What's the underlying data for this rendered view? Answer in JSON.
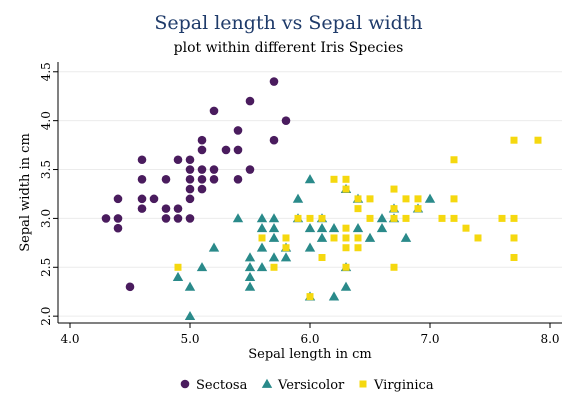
{
  "chart_data": {
    "type": "scatter",
    "title": "Sepal length vs Sepal width",
    "subtitle": "plot within different Iris Species",
    "xlabel": "Sepal length in cm",
    "ylabel": "Sepal width in cm",
    "xlim": [
      3.9,
      8.1
    ],
    "ylim": [
      1.93,
      4.6
    ],
    "xticks": [
      "4.0",
      "5.0",
      "6.0",
      "7.0",
      "8.0"
    ],
    "yticks": [
      "2.0",
      "2.5",
      "3.0",
      "3.5",
      "4.0",
      "4.5"
    ],
    "grid": "horizontal",
    "legend_position": "bottom",
    "series": [
      {
        "name": "Sectosa",
        "marker": "circle",
        "color": "#4a1c5e",
        "points": [
          [
            4.3,
            3.0
          ],
          [
            4.4,
            2.9
          ],
          [
            4.4,
            3.0
          ],
          [
            4.4,
            3.2
          ],
          [
            4.5,
            2.3
          ],
          [
            4.6,
            3.1
          ],
          [
            4.6,
            3.2
          ],
          [
            4.6,
            3.4
          ],
          [
            4.6,
            3.6
          ],
          [
            4.7,
            3.2
          ],
          [
            4.8,
            3.0
          ],
          [
            4.8,
            3.1
          ],
          [
            4.8,
            3.4
          ],
          [
            4.9,
            3.0
          ],
          [
            4.9,
            3.1
          ],
          [
            4.9,
            3.6
          ],
          [
            5.0,
            3.0
          ],
          [
            5.0,
            3.2
          ],
          [
            5.0,
            3.3
          ],
          [
            5.0,
            3.4
          ],
          [
            5.0,
            3.5
          ],
          [
            5.0,
            3.6
          ],
          [
            5.1,
            3.3
          ],
          [
            5.1,
            3.4
          ],
          [
            5.1,
            3.5
          ],
          [
            5.1,
            3.7
          ],
          [
            5.1,
            3.8
          ],
          [
            5.2,
            3.4
          ],
          [
            5.2,
            3.5
          ],
          [
            5.2,
            4.1
          ],
          [
            5.3,
            3.7
          ],
          [
            5.4,
            3.4
          ],
          [
            5.4,
            3.7
          ],
          [
            5.4,
            3.9
          ],
          [
            5.5,
            3.5
          ],
          [
            5.5,
            4.2
          ],
          [
            5.7,
            3.8
          ],
          [
            5.7,
            4.4
          ],
          [
            5.8,
            4.0
          ]
        ]
      },
      {
        "name": "Versicolor",
        "marker": "triangle",
        "color": "#2a8a8a",
        "points": [
          [
            4.9,
            2.4
          ],
          [
            5.0,
            2.0
          ],
          [
            5.0,
            2.3
          ],
          [
            5.1,
            2.5
          ],
          [
            5.2,
            2.7
          ],
          [
            5.4,
            3.0
          ],
          [
            5.5,
            2.3
          ],
          [
            5.5,
            2.4
          ],
          [
            5.5,
            2.5
          ],
          [
            5.5,
            2.6
          ],
          [
            5.6,
            2.5
          ],
          [
            5.6,
            2.7
          ],
          [
            5.6,
            2.9
          ],
          [
            5.6,
            3.0
          ],
          [
            5.7,
            2.6
          ],
          [
            5.7,
            2.8
          ],
          [
            5.7,
            2.9
          ],
          [
            5.7,
            3.0
          ],
          [
            5.8,
            2.6
          ],
          [
            5.8,
            2.7
          ],
          [
            5.9,
            3.0
          ],
          [
            5.9,
            3.2
          ],
          [
            6.0,
            2.2
          ],
          [
            6.0,
            2.7
          ],
          [
            6.0,
            2.9
          ],
          [
            6.0,
            3.4
          ],
          [
            6.1,
            2.8
          ],
          [
            6.1,
            2.9
          ],
          [
            6.1,
            3.0
          ],
          [
            6.2,
            2.2
          ],
          [
            6.2,
            2.9
          ],
          [
            6.3,
            2.3
          ],
          [
            6.3,
            2.5
          ],
          [
            6.3,
            3.3
          ],
          [
            6.4,
            2.9
          ],
          [
            6.4,
            3.2
          ],
          [
            6.5,
            2.8
          ],
          [
            6.6,
            2.9
          ],
          [
            6.6,
            3.0
          ],
          [
            6.7,
            3.0
          ],
          [
            6.7,
            3.1
          ],
          [
            6.8,
            2.8
          ],
          [
            6.9,
            3.1
          ],
          [
            7.0,
            3.2
          ]
        ]
      },
      {
        "name": "Virginica",
        "marker": "square",
        "color": "#f5d80f",
        "points": [
          [
            4.9,
            2.5
          ],
          [
            5.6,
            2.8
          ],
          [
            5.7,
            2.5
          ],
          [
            5.8,
            2.7
          ],
          [
            5.8,
            2.8
          ],
          [
            5.9,
            3.0
          ],
          [
            6.0,
            2.2
          ],
          [
            6.0,
            3.0
          ],
          [
            6.1,
            2.6
          ],
          [
            6.1,
            3.0
          ],
          [
            6.2,
            2.8
          ],
          [
            6.2,
            3.4
          ],
          [
            6.3,
            2.5
          ],
          [
            6.3,
            2.7
          ],
          [
            6.3,
            2.8
          ],
          [
            6.3,
            2.9
          ],
          [
            6.3,
            3.3
          ],
          [
            6.3,
            3.4
          ],
          [
            6.4,
            2.7
          ],
          [
            6.4,
            2.8
          ],
          [
            6.4,
            3.1
          ],
          [
            6.4,
            3.2
          ],
          [
            6.5,
            3.0
          ],
          [
            6.5,
            3.2
          ],
          [
            6.7,
            2.5
          ],
          [
            6.7,
            3.0
          ],
          [
            6.7,
            3.1
          ],
          [
            6.7,
            3.3
          ],
          [
            6.8,
            3.0
          ],
          [
            6.8,
            3.2
          ],
          [
            6.9,
            3.1
          ],
          [
            6.9,
            3.2
          ],
          [
            7.1,
            3.0
          ],
          [
            7.2,
            3.0
          ],
          [
            7.2,
            3.2
          ],
          [
            7.2,
            3.6
          ],
          [
            7.3,
            2.9
          ],
          [
            7.4,
            2.8
          ],
          [
            7.6,
            3.0
          ],
          [
            7.7,
            2.6
          ],
          [
            7.7,
            2.8
          ],
          [
            7.7,
            3.0
          ],
          [
            7.7,
            3.8
          ],
          [
            7.9,
            3.8
          ]
        ]
      }
    ]
  }
}
